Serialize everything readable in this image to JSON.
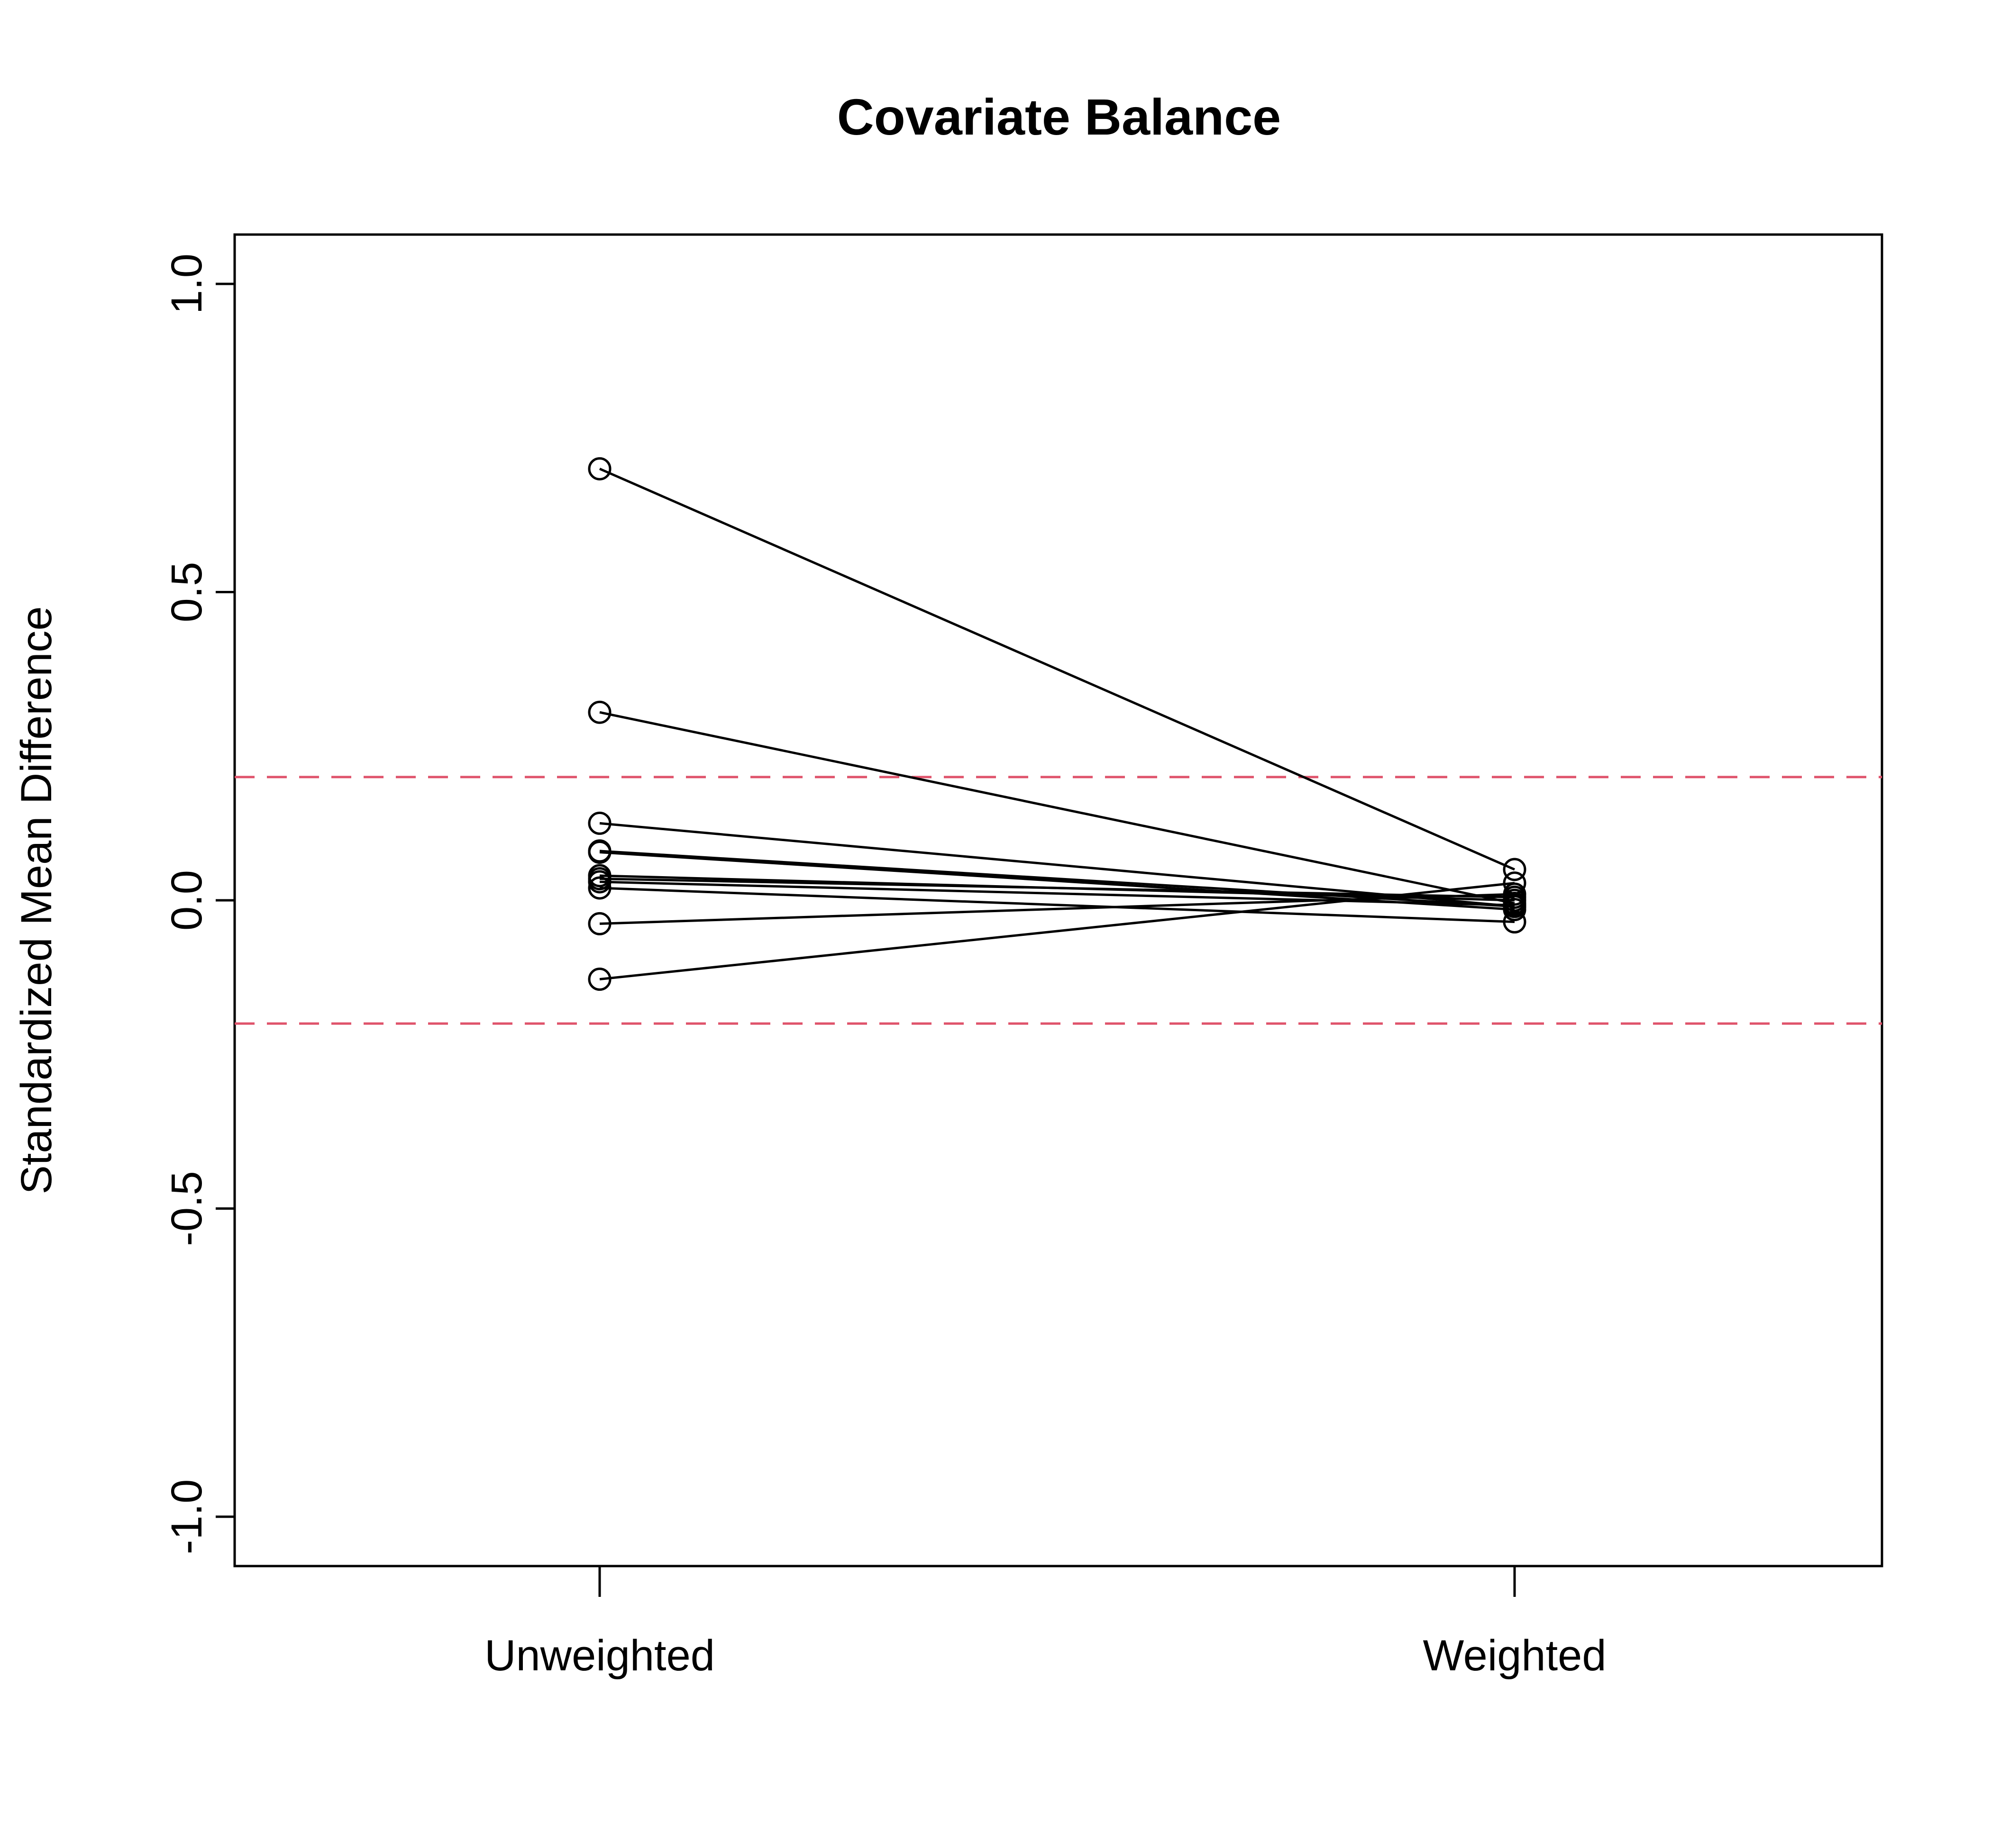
{
  "chart_data": {
    "type": "line",
    "title": "Covariate Balance",
    "xlabel": "",
    "ylabel": "Standardized Mean Difference",
    "categories": [
      "Unweighted",
      "Weighted"
    ],
    "ylim": [
      -1.08,
      1.08
    ],
    "yticks": [
      -1.0,
      -0.5,
      0.0,
      0.5,
      1.0
    ],
    "ytick_labels": [
      "-1.0",
      "-0.5",
      "0.0",
      "0.5",
      "1.0"
    ],
    "reference_lines": [
      0.2,
      -0.2
    ],
    "reference_line_color": "#DF536B",
    "series": [
      {
        "values": [
          0.7,
          0.05
        ]
      },
      {
        "values": [
          0.305,
          -0.005
        ]
      },
      {
        "values": [
          0.125,
          -0.01
        ]
      },
      {
        "values": [
          0.08,
          -0.01
        ]
      },
      {
        "values": [
          0.078,
          -0.015
        ]
      },
      {
        "values": [
          0.04,
          0.0
        ]
      },
      {
        "values": [
          0.035,
          0.005
        ]
      },
      {
        "values": [
          0.03,
          -0.008
        ]
      },
      {
        "values": [
          0.02,
          -0.035
        ]
      },
      {
        "values": [
          -0.038,
          0.01
        ]
      },
      {
        "values": [
          -0.128,
          0.028
        ]
      }
    ],
    "grid": false,
    "marker": "open-circle",
    "line_color": "#000000"
  }
}
